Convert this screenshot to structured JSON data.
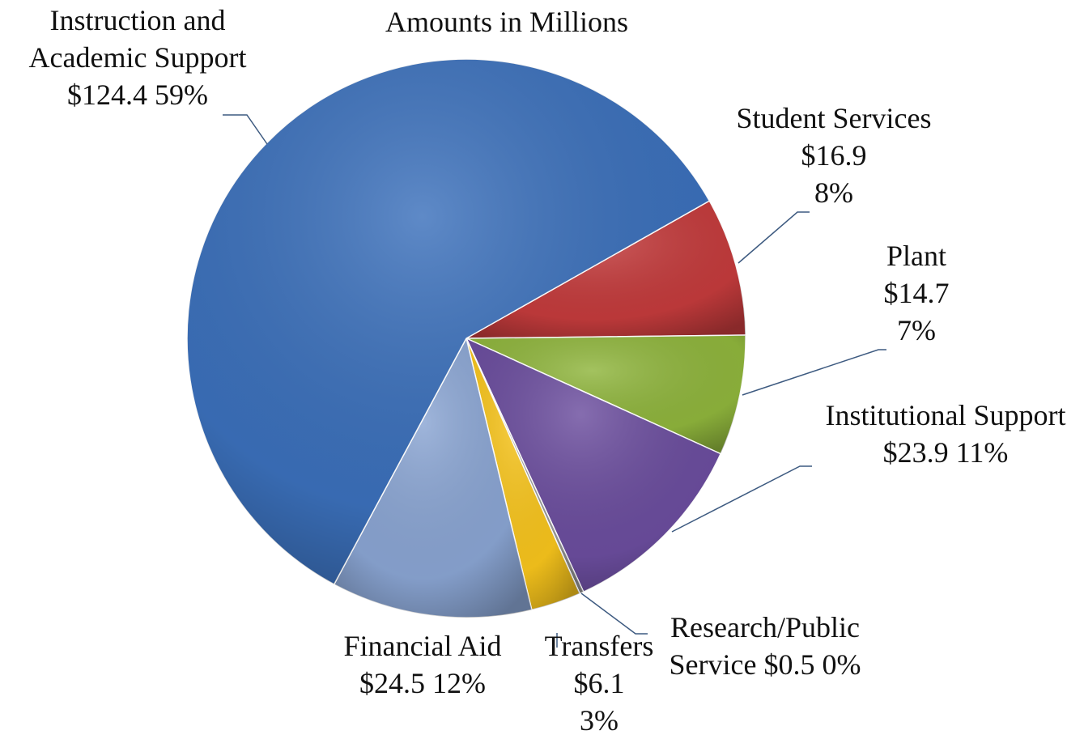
{
  "chart_data": {
    "type": "pie",
    "title": "Amounts in Millions",
    "categories": [
      "Student Services",
      "Plant",
      "Institutional Support",
      "Research/Public Service",
      "Transfers",
      "Financial Aid",
      "Instruction and Academic Support"
    ],
    "values": [
      16.9,
      14.7,
      23.9,
      0.5,
      6.1,
      24.5,
      124.4
    ],
    "value_labels": [
      "$16.9",
      "$14.7",
      "$23.9",
      "$0.5",
      "$6.1",
      "$24.5",
      "$124.4"
    ],
    "percent_labels": [
      "8%",
      "7%",
      "11%",
      "0%",
      "3%",
      "12%",
      "59%"
    ],
    "colors": [
      "#c43b3c",
      "#8fb53c",
      "#6b4d9e",
      "#9a9a9a",
      "#f8c51c",
      "#8aa5d3",
      "#3b70bb"
    ]
  }
}
